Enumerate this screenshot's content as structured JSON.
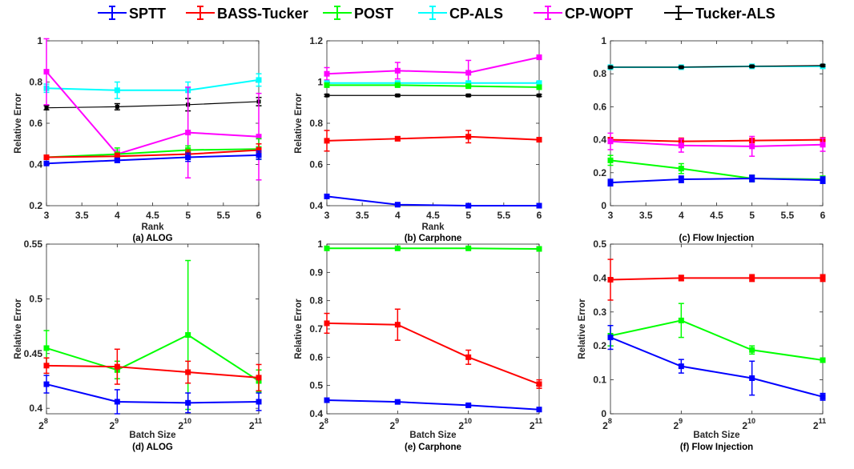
{
  "legend": [
    {
      "name": "SPTT",
      "color": "#0000ff"
    },
    {
      "name": "BASS-Tucker",
      "color": "#ff0000"
    },
    {
      "name": "POST",
      "color": "#00ff00"
    },
    {
      "name": "CP-ALS",
      "color": "#00ffff"
    },
    {
      "name": "CP-WOPT",
      "color": "#ff00ff"
    },
    {
      "name": "Tucker-ALS",
      "color": "#000000"
    }
  ],
  "chart_data": [
    {
      "type": "line",
      "title": "(a) ALOG",
      "xlabel": "Rank",
      "ylabel": "Relative Error",
      "x": [
        3,
        4,
        5,
        6
      ],
      "xticks": [
        "3",
        "3.5",
        "4",
        "4.5",
        "5",
        "5.5",
        "6"
      ],
      "xlim": [
        3,
        6
      ],
      "ylim": [
        0.2,
        1.0
      ],
      "yticks": [
        "0.2",
        "0.4",
        "0.6",
        "0.8",
        "1"
      ],
      "series": [
        {
          "name": "CP-ALS",
          "values": [
            0.77,
            0.76,
            0.76,
            0.81
          ],
          "err": [
            0.02,
            0.04,
            0.04,
            0.03
          ]
        },
        {
          "name": "Tucker-ALS",
          "values": [
            0.675,
            0.68,
            0.69,
            0.705
          ],
          "err": [
            0.01,
            0.015,
            0.03,
            0.02
          ]
        },
        {
          "name": "CP-WOPT",
          "values": [
            0.85,
            0.45,
            0.555,
            0.535
          ],
          "err": [
            0.16,
            0.02,
            0.22,
            0.21
          ]
        },
        {
          "name": "POST",
          "values": [
            0.435,
            0.45,
            0.47,
            0.475
          ],
          "err": [
            0.01,
            0.03,
            0.02,
            0.05
          ]
        },
        {
          "name": "BASS-Tucker",
          "values": [
            0.435,
            0.44,
            0.45,
            0.47
          ],
          "err": [
            0.01,
            0.015,
            0.02,
            0.03
          ]
        },
        {
          "name": "SPTT",
          "values": [
            0.405,
            0.42,
            0.435,
            0.445
          ],
          "err": [
            0.01,
            0.01,
            0.02,
            0.02
          ]
        }
      ]
    },
    {
      "type": "line",
      "title": "(b) Carphone",
      "xlabel": "Rank",
      "ylabel": "Relative Error",
      "x": [
        3,
        4,
        5,
        6
      ],
      "xticks": [
        "3",
        "3.5",
        "4",
        "4.5",
        "5",
        "5.5",
        "6"
      ],
      "xlim": [
        3,
        6
      ],
      "ylim": [
        0.4,
        1.2
      ],
      "yticks": [
        "0.4",
        "0.6",
        "0.8",
        "1",
        "1.2"
      ],
      "series": [
        {
          "name": "CP-WOPT",
          "values": [
            1.04,
            1.055,
            1.045,
            1.12
          ],
          "err": [
            0.03,
            0.04,
            0.06,
            0.01
          ]
        },
        {
          "name": "CP-ALS",
          "values": [
            0.995,
            0.995,
            0.995,
            0.995
          ],
          "err": [
            0.005,
            0.005,
            0.005,
            0.005
          ]
        },
        {
          "name": "POST",
          "values": [
            0.985,
            0.985,
            0.98,
            0.975
          ],
          "err": [
            0.005,
            0.005,
            0.005,
            0.005
          ]
        },
        {
          "name": "Tucker-ALS",
          "values": [
            0.935,
            0.935,
            0.935,
            0.935
          ],
          "err": [
            0.005,
            0.005,
            0.005,
            0.005
          ]
        },
        {
          "name": "BASS-Tucker",
          "values": [
            0.715,
            0.725,
            0.735,
            0.72
          ],
          "err": [
            0.05,
            0.01,
            0.03,
            0.01
          ]
        },
        {
          "name": "SPTT",
          "values": [
            0.445,
            0.405,
            0.4,
            0.4
          ],
          "err": [
            0.005,
            0.005,
            0.005,
            0.005
          ]
        }
      ]
    },
    {
      "type": "line",
      "title": "(c) Flow Injection",
      "xlabel": "",
      "ylabel": "",
      "x": [
        3,
        4,
        5,
        6
      ],
      "xticks": [
        "3",
        "3.5",
        "4",
        "4.5",
        "5",
        "5.5",
        "6"
      ],
      "xlim": [
        3,
        6
      ],
      "ylim": [
        0,
        1.0
      ],
      "yticks": [
        "0",
        "0.2",
        "0.4",
        "0.6",
        "0.8",
        "1"
      ],
      "series": [
        {
          "name": "CP-ALS",
          "values": [
            0.84,
            0.84,
            0.845,
            0.845
          ],
          "err": [
            0.005,
            0.005,
            0.005,
            0.005
          ]
        },
        {
          "name": "Tucker-ALS",
          "values": [
            0.84,
            0.84,
            0.845,
            0.85
          ],
          "err": [
            0.005,
            0.005,
            0.005,
            0.005
          ]
        },
        {
          "name": "BASS-Tucker",
          "values": [
            0.4,
            0.39,
            0.395,
            0.4
          ],
          "err": [
            0.01,
            0.02,
            0.01,
            0.01
          ]
        },
        {
          "name": "CP-WOPT",
          "values": [
            0.39,
            0.365,
            0.36,
            0.37
          ],
          "err": [
            0.05,
            0.04,
            0.06,
            0.04
          ]
        },
        {
          "name": "POST",
          "values": [
            0.275,
            0.225,
            0.165,
            0.16
          ],
          "err": [
            0.03,
            0.03,
            0.02,
            0.02
          ]
        },
        {
          "name": "SPTT",
          "values": [
            0.14,
            0.16,
            0.165,
            0.155
          ],
          "err": [
            0.02,
            0.02,
            0.02,
            0.02
          ]
        }
      ]
    },
    {
      "type": "line",
      "title": "(d) ALOG",
      "xlabel": "Batch Size",
      "ylabel": "Relative Error",
      "x": [
        "2^8",
        "2^9",
        "2^10",
        "2^11"
      ],
      "xtick_base": "2",
      "xtick_exp": [
        "8",
        "9",
        "10",
        "11"
      ],
      "ylim": [
        0.395,
        0.55
      ],
      "yticks": [
        "0.4",
        "0.45",
        "0.5",
        "0.55"
      ],
      "ytick_values": [
        0.4,
        0.45,
        0.5,
        0.55
      ],
      "series": [
        {
          "name": "POST",
          "values": [
            0.455,
            0.435,
            0.467,
            0.425
          ],
          "err": [
            0.016,
            0.008,
            0.068,
            0.01
          ]
        },
        {
          "name": "BASS-Tucker",
          "values": [
            0.439,
            0.438,
            0.433,
            0.428
          ],
          "err": [
            0.007,
            0.016,
            0.01,
            0.012
          ]
        },
        {
          "name": "SPTT",
          "values": [
            0.422,
            0.406,
            0.405,
            0.406
          ],
          "err": [
            0.008,
            0.011,
            0.009,
            0.008
          ]
        }
      ]
    },
    {
      "type": "line",
      "title": "(e) Carphone",
      "xlabel": "Batch Size",
      "ylabel": "Relative Error",
      "x": [
        "2^8",
        "2^9",
        "2^10",
        "2^11"
      ],
      "xtick_base": "2",
      "xtick_exp": [
        "8",
        "9",
        "10",
        "11"
      ],
      "ylim": [
        0.4,
        1.0
      ],
      "yticks": [
        "0.4",
        "0.5",
        "0.6",
        "0.7",
        "0.8",
        "0.9",
        "1"
      ],
      "ytick_values": [
        0.4,
        0.5,
        0.6,
        0.7,
        0.8,
        0.9,
        1.0
      ],
      "series": [
        {
          "name": "POST",
          "values": [
            0.985,
            0.985,
            0.985,
            0.983
          ],
          "err": [
            0.003,
            0.003,
            0.003,
            0.003
          ]
        },
        {
          "name": "BASS-Tucker",
          "values": [
            0.72,
            0.715,
            0.6,
            0.505
          ],
          "err": [
            0.035,
            0.055,
            0.025,
            0.015
          ]
        },
        {
          "name": "SPTT",
          "values": [
            0.448,
            0.442,
            0.43,
            0.415
          ],
          "err": [
            0.005,
            0.005,
            0.005,
            0.005
          ]
        }
      ]
    },
    {
      "type": "line",
      "title": "(f) Flow Injection",
      "xlabel": "Batch Size",
      "ylabel": "Relative Error",
      "x": [
        "2^8",
        "2^9",
        "2^10",
        "2^11"
      ],
      "xtick_base": "2",
      "xtick_exp": [
        "8",
        "9",
        "10",
        "11"
      ],
      "ylim": [
        0,
        0.5
      ],
      "yticks": [
        "0",
        "0.1",
        "0.2",
        "0.3",
        "0.4",
        "0.5"
      ],
      "ytick_values": [
        0,
        0.1,
        0.2,
        0.3,
        0.4,
        0.5
      ],
      "series": [
        {
          "name": "BASS-Tucker",
          "values": [
            0.395,
            0.4,
            0.4,
            0.4
          ],
          "err": [
            0.06,
            0.008,
            0.01,
            0.01
          ]
        },
        {
          "name": "POST",
          "values": [
            0.23,
            0.275,
            0.188,
            0.158
          ],
          "err": [
            0.03,
            0.05,
            0.012,
            0.005
          ]
        },
        {
          "name": "SPTT",
          "values": [
            0.225,
            0.14,
            0.105,
            0.05
          ],
          "err": [
            0.035,
            0.02,
            0.05,
            0.01
          ]
        }
      ]
    }
  ]
}
